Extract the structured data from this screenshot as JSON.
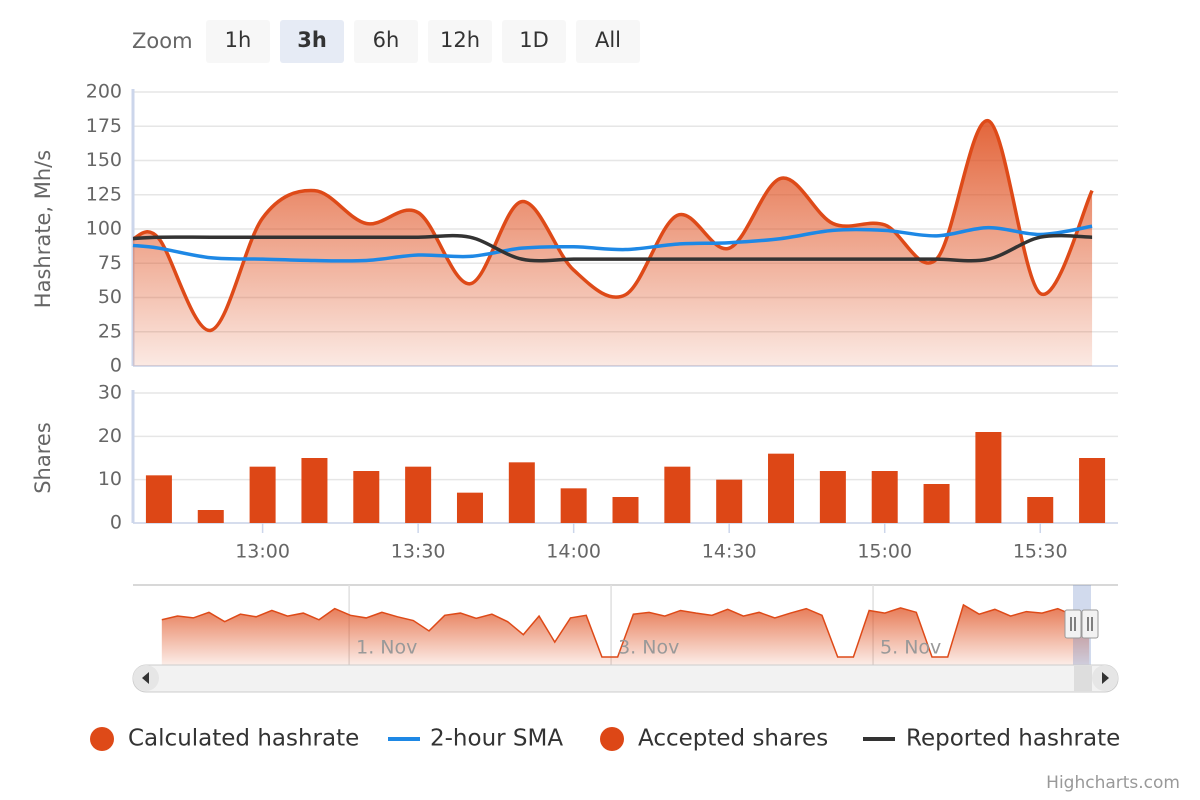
{
  "range_selector": {
    "label": "Zoom",
    "buttons": [
      "1h",
      "3h",
      "6h",
      "12h",
      "1D",
      "All"
    ],
    "selected": 1
  },
  "chart_data": [
    {
      "type": "area",
      "ylabel": "Hashrate, Mh/s",
      "x": [
        "12:35",
        "12:40",
        "12:50",
        "13:00",
        "13:10",
        "13:20",
        "13:30",
        "13:40",
        "13:50",
        "14:00",
        "14:10",
        "14:20",
        "14:30",
        "14:40",
        "14:50",
        "15:00",
        "15:10",
        "15:20",
        "15:30",
        "15:40"
      ],
      "series": [
        {
          "name": "Calculated hashrate",
          "type": "area",
          "color": "#de4a18",
          "values": [
            93,
            93,
            26,
            108,
            128,
            104,
            112,
            60,
            120,
            70,
            52,
            110,
            86,
            137,
            104,
            103,
            78,
            179,
            53,
            128
          ]
        },
        {
          "name": "2-hour SMA",
          "type": "line",
          "color": "#1e88e5",
          "values": [
            88,
            86,
            79,
            78,
            77,
            77,
            81,
            80,
            86,
            87,
            85,
            89,
            90,
            93,
            99,
            99,
            95,
            101,
            96,
            102
          ]
        },
        {
          "name": "Reported hashrate",
          "type": "line",
          "color": "#333333",
          "values": [
            93,
            94,
            94,
            94,
            94,
            94,
            94,
            94,
            78,
            78,
            78,
            78,
            78,
            78,
            78,
            78,
            78,
            78,
            94,
            94
          ]
        }
      ],
      "xlim": [
        "12:35",
        "15:45"
      ],
      "ylim": [
        0,
        200
      ],
      "yticks": [
        0,
        25,
        50,
        75,
        100,
        125,
        150,
        175,
        200
      ],
      "grid": true
    },
    {
      "type": "bar",
      "ylabel": "Shares",
      "x": [
        "12:40",
        "12:50",
        "13:00",
        "13:10",
        "13:20",
        "13:30",
        "13:40",
        "13:50",
        "14:00",
        "14:10",
        "14:20",
        "14:30",
        "14:40",
        "14:50",
        "15:00",
        "15:10",
        "15:20",
        "15:30",
        "15:40"
      ],
      "series": [
        {
          "name": "Accepted shares",
          "color": "#dd4716",
          "values": [
            11,
            3,
            13,
            15,
            12,
            13,
            7,
            14,
            8,
            6,
            13,
            10,
            16,
            12,
            12,
            9,
            21,
            6,
            15
          ]
        }
      ],
      "xlim": [
        "12:35",
        "15:45"
      ],
      "xticks": [
        "13:00",
        "13:30",
        "14:00",
        "14:30",
        "15:00",
        "15:30"
      ],
      "ylim": [
        0,
        30
      ],
      "yticks": [
        0,
        10,
        20,
        30
      ],
      "grid": true
    },
    {
      "type": "area",
      "color": "#de4a18",
      "x": [
        -0.43,
        -0.31,
        -0.19,
        -0.07,
        0.05,
        0.17,
        0.29,
        0.41,
        0.53,
        0.65,
        0.77,
        0.89,
        1.01,
        1.13,
        1.25,
        1.37,
        1.49,
        1.61,
        1.73,
        1.85,
        1.97,
        2.09,
        2.21,
        2.33,
        2.45,
        2.57,
        2.69,
        2.81,
        2.93,
        3.05,
        3.17,
        3.29,
        3.41,
        3.53,
        3.65,
        3.77,
        3.89,
        4.01,
        4.13,
        4.25,
        4.37,
        4.49,
        4.61,
        4.73,
        4.85,
        4.97,
        5.09,
        5.21,
        5.33,
        5.45,
        5.57,
        5.69,
        5.81,
        5.93,
        6.05,
        6.17,
        6.29,
        6.41,
        6.53,
        6.65
      ],
      "values": [
        100,
        110,
        105,
        120,
        95,
        115,
        108,
        125,
        110,
        118,
        100,
        130,
        112,
        105,
        120,
        108,
        98,
        70,
        112,
        118,
        104,
        115,
        95,
        60,
        110,
        40,
        105,
        112,
        0,
        0,
        115,
        120,
        110,
        125,
        118,
        112,
        128,
        110,
        120,
        105,
        118,
        130,
        112,
        0,
        0,
        125,
        118,
        132,
        120,
        0,
        0,
        140,
        115,
        128,
        110,
        122,
        118,
        130,
        112,
        125
      ],
      "xlim": [
        -0.65,
        6.87
      ],
      "ylim": [
        0,
        180
      ],
      "xticks": [
        {
          "value": 1,
          "label": "1. Nov"
        },
        {
          "value": 3,
          "label": "3. Nov"
        },
        {
          "value": 5,
          "label": "5. Nov"
        }
      ],
      "grid": true
    }
  ],
  "credits": "Highcharts.com"
}
